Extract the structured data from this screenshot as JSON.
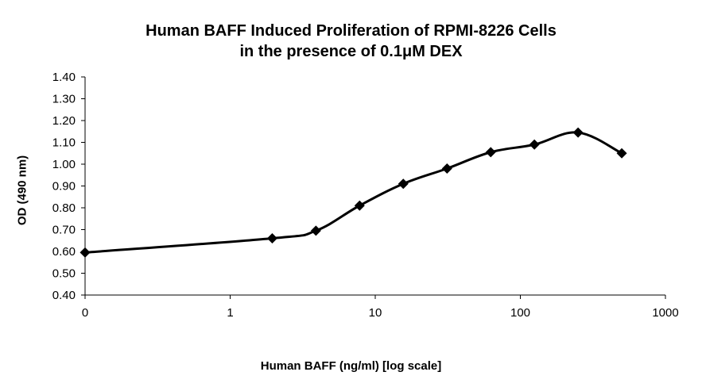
{
  "chart_data": {
    "type": "line",
    "title_lines": [
      "Human BAFF Induced Proliferation of RPMI-8226 Cells",
      "in the presence of 0.1μM DEX"
    ],
    "xlabel": "Human BAFF (ng/ml) [log scale]",
    "ylabel": "OD (490 nm)",
    "x_scale": "log",
    "x_ticks": [
      "0",
      "1",
      "10",
      "100",
      "1000"
    ],
    "x_tick_values": [
      0.1,
      1,
      10,
      100,
      1000
    ],
    "ylim": [
      0.4,
      1.4
    ],
    "y_ticks": [
      "0.40",
      "0.50",
      "0.60",
      "0.70",
      "0.80",
      "0.90",
      "1.00",
      "1.10",
      "1.20",
      "1.30",
      "1.40"
    ],
    "y_tick_values": [
      0.4,
      0.5,
      0.6,
      0.7,
      0.8,
      0.9,
      1.0,
      1.1,
      1.2,
      1.3,
      1.4
    ],
    "grid": false,
    "legend": "none",
    "marker": "diamond",
    "line_color": "#000000",
    "series": [
      {
        "x": [
          0.1,
          1.95,
          3.9,
          7.8,
          15.6,
          31.25,
          62.5,
          125,
          250,
          500
        ],
        "values": [
          0.595,
          0.66,
          0.695,
          0.81,
          0.91,
          0.98,
          1.055,
          1.09,
          1.145,
          1.05
        ]
      }
    ]
  }
}
